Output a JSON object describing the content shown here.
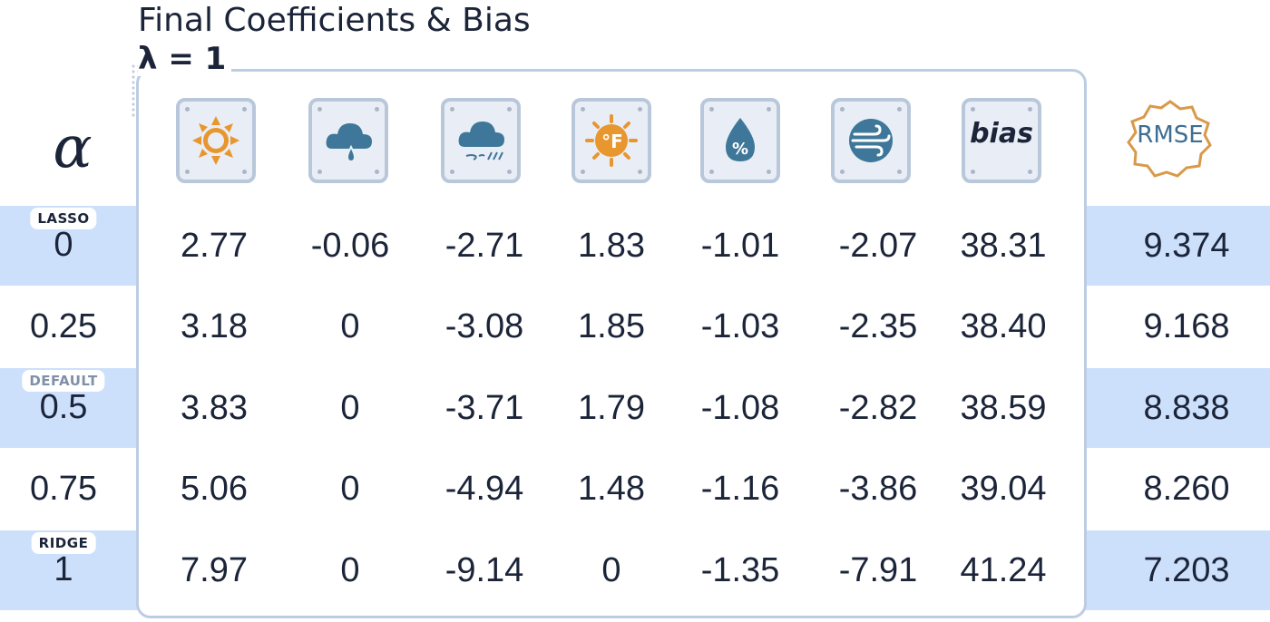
{
  "title": "Final Coefficients & Bias",
  "lambda_label": "λ = 1",
  "alpha_header": "α",
  "rmse_header": "RMSE",
  "bias_header": "bias",
  "feature_icons": [
    "sun-icon",
    "rain-cloud-icon",
    "snow-cloud-icon",
    "fahrenheit-sun-icon",
    "humidity-drop-icon",
    "wind-icon",
    "bias-label"
  ],
  "colors": {
    "band": "#cde0fb",
    "panel_border": "#bccde3",
    "icon_bg": "#e9eef6",
    "icon_border": "#b9c7da",
    "sun": "#e8962e",
    "cloud": "#3e7799",
    "rmse_badge": "#d89a4a",
    "tag_text_dark": "#1b2438",
    "tag_text_muted": "#8090a8"
  },
  "rows": [
    {
      "tag": "LASSO",
      "alpha": "0",
      "values": [
        "2.77",
        "-0.06",
        "-2.71",
        "1.83",
        "-1.01",
        "-2.07",
        "38.31"
      ],
      "rmse": "9.374"
    },
    {
      "tag": "",
      "alpha": "0.25",
      "values": [
        "3.18",
        "0",
        "-3.08",
        "1.85",
        "-1.03",
        "-2.35",
        "38.40"
      ],
      "rmse": "9.168"
    },
    {
      "tag": "DEFAULT",
      "alpha": "0.5",
      "values": [
        "3.83",
        "0",
        "-3.71",
        "1.79",
        "-1.08",
        "-2.82",
        "38.59"
      ],
      "rmse": "8.838"
    },
    {
      "tag": "",
      "alpha": "0.75",
      "values": [
        "5.06",
        "0",
        "-4.94",
        "1.48",
        "-1.16",
        "-3.86",
        "39.04"
      ],
      "rmse": "8.260"
    },
    {
      "tag": "RIDGE",
      "alpha": "1",
      "values": [
        "7.97",
        "0",
        "-9.14",
        "0",
        "-1.35",
        "-7.91",
        "41.24"
      ],
      "rmse": "7.203"
    }
  ]
}
